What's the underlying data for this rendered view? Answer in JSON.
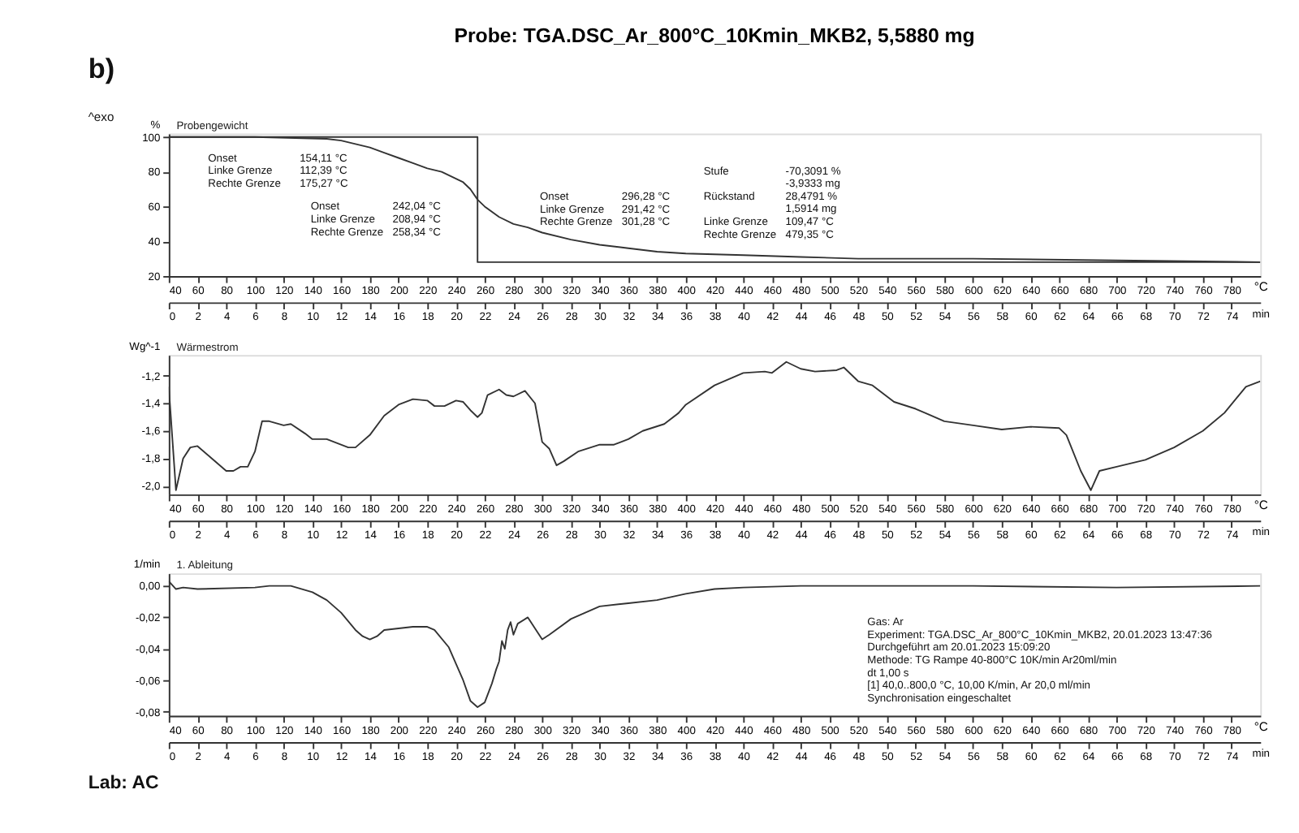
{
  "chart_data": [
    {
      "type": "line",
      "title": "Probe: TGA.DSC_Ar_800°C_10Kmin_MKB2, 5,5880 mg",
      "subtitle": "Probengewicht",
      "ylabel": "%",
      "xlabel": "°C",
      "x2label": "min",
      "x": [
        40,
        100,
        150,
        160,
        170,
        180,
        190,
        200,
        210,
        220,
        230,
        240,
        245,
        250,
        255,
        260,
        270,
        280,
        290,
        300,
        320,
        340,
        360,
        380,
        400,
        440,
        480,
        520,
        600,
        700,
        800
      ],
      "series": [
        {
          "color": "#333333",
          "values": [
            100,
            100,
            99,
            98,
            96,
            94,
            91,
            88,
            85,
            82,
            80,
            76,
            74,
            70,
            64,
            60,
            54,
            50,
            48,
            45,
            41,
            38,
            36,
            34,
            33,
            32,
            31,
            30,
            30,
            29,
            28
          ]
        },
        {
          "color": "#333333",
          "x": [
            40,
            255,
            255,
            800
          ],
          "values": [
            100,
            100,
            28,
            28
          ]
        }
      ],
      "xlim": [
        40,
        800
      ],
      "xticks": [
        40,
        60,
        80,
        100,
        120,
        140,
        160,
        180,
        200,
        220,
        240,
        260,
        280,
        300,
        320,
        340,
        360,
        380,
        400,
        420,
        440,
        460,
        480,
        500,
        520,
        540,
        560,
        580,
        600,
        620,
        640,
        660,
        680,
        700,
        720,
        740,
        760,
        780
      ],
      "x2lim": [
        0,
        76
      ],
      "x2ticks": [
        0,
        2,
        4,
        6,
        8,
        10,
        12,
        14,
        16,
        18,
        20,
        22,
        24,
        26,
        28,
        30,
        32,
        34,
        36,
        38,
        40,
        42,
        44,
        46,
        48,
        50,
        52,
        54,
        56,
        58,
        60,
        62,
        64,
        66,
        68,
        70,
        72,
        74
      ],
      "ylim": [
        20,
        102
      ],
      "yticks": [
        20,
        40,
        60,
        80,
        100
      ],
      "grid": false,
      "annotations": [
        "b)",
        "^exo",
        "Onset\nLinke Grenze\nRechte Grenze",
        "154,11 °C\n112,39 °C\n175,27 °C",
        "Onset\nLinke Grenze\nRechte Grenze",
        "242,04 °C\n208,94 °C\n258,34 °C",
        "Onset\nLinke Grenze\nRechte Grenze",
        "296,28 °C\n291,42 °C\n301,28 °C",
        "Stufe",
        "Rückstand",
        "Linke Grenze\nRechte Grenze",
        "-70,3091 %\n-3,9333 mg\n28,4791 %\n1,5914 mg\n109,47 °C\n479,35 °C"
      ]
    },
    {
      "type": "line",
      "subtitle": "Wärmestrom",
      "ylabel": "Wg^-1",
      "xlabel": "°C",
      "x2label": "min",
      "x": [
        40,
        45,
        50,
        55,
        60,
        70,
        80,
        85,
        90,
        95,
        100,
        105,
        110,
        120,
        125,
        135,
        140,
        150,
        165,
        170,
        180,
        190,
        200,
        210,
        220,
        225,
        232,
        240,
        245,
        250,
        255,
        258,
        262,
        270,
        275,
        280,
        288,
        295,
        300,
        305,
        310,
        315,
        325,
        340,
        350,
        360,
        370,
        385,
        395,
        400,
        420,
        440,
        455,
        460,
        470,
        480,
        490,
        505,
        510,
        520,
        530,
        545,
        560,
        580,
        600,
        620,
        640,
        660,
        665,
        675,
        682,
        688,
        700,
        720,
        740,
        760,
        775,
        790,
        800
      ],
      "series": [
        {
          "color": "#333333",
          "values": [
            -1.28,
            -2.03,
            -1.8,
            -1.72,
            -1.71,
            -1.8,
            -1.89,
            -1.89,
            -1.86,
            -1.86,
            -1.75,
            -1.53,
            -1.53,
            -1.56,
            -1.55,
            -1.62,
            -1.66,
            -1.66,
            -1.72,
            -1.72,
            -1.63,
            -1.49,
            -1.41,
            -1.37,
            -1.38,
            -1.42,
            -1.42,
            -1.38,
            -1.39,
            -1.45,
            -1.5,
            -1.47,
            -1.34,
            -1.3,
            -1.34,
            -1.35,
            -1.31,
            -1.4,
            -1.68,
            -1.73,
            -1.85,
            -1.82,
            -1.75,
            -1.7,
            -1.7,
            -1.66,
            -1.6,
            -1.55,
            -1.47,
            -1.41,
            -1.27,
            -1.18,
            -1.17,
            -1.18,
            -1.1,
            -1.15,
            -1.17,
            -1.16,
            -1.14,
            -1.24,
            -1.27,
            -1.39,
            -1.44,
            -1.53,
            -1.56,
            -1.59,
            -1.57,
            -1.58,
            -1.63,
            -1.89,
            -2.03,
            -1.89,
            -1.86,
            -1.81,
            -1.72,
            -1.6,
            -1.47,
            -1.28,
            -1.24
          ]
        }
      ],
      "xlim": [
        40,
        800
      ],
      "xticks": [
        40,
        60,
        80,
        100,
        120,
        140,
        160,
        180,
        200,
        220,
        240,
        260,
        280,
        300,
        320,
        340,
        360,
        380,
        400,
        420,
        440,
        460,
        480,
        500,
        520,
        540,
        560,
        580,
        600,
        620,
        640,
        660,
        680,
        700,
        720,
        740,
        760,
        780
      ],
      "x2lim": [
        0,
        76
      ],
      "x2ticks": [
        0,
        2,
        4,
        6,
        8,
        10,
        12,
        14,
        16,
        18,
        20,
        22,
        24,
        26,
        28,
        30,
        32,
        34,
        36,
        38,
        40,
        42,
        44,
        46,
        48,
        50,
        52,
        54,
        56,
        58,
        60,
        62,
        64,
        66,
        68,
        70,
        72,
        74
      ],
      "ylim": [
        -2.06,
        -1.05
      ],
      "yticks": [
        {
          "value": -2.0,
          "label": "-2,0"
        },
        {
          "value": -1.8,
          "label": "-1,8"
        },
        {
          "value": -1.6,
          "label": "-1,6"
        },
        {
          "value": -1.4,
          "label": "-1,4"
        },
        {
          "value": -1.2,
          "label": "-1,2"
        }
      ],
      "grid": false
    },
    {
      "type": "line",
      "subtitle": "1. Ableitung",
      "ylabel": "1/min",
      "xlabel": "°C",
      "x2label": "min",
      "x": [
        40,
        45,
        50,
        60,
        100,
        110,
        125,
        140,
        150,
        160,
        170,
        175,
        180,
        185,
        190,
        200,
        210,
        220,
        225,
        235,
        245,
        250,
        255,
        260,
        265,
        268,
        270,
        272,
        274,
        276,
        278,
        280,
        283,
        290,
        295,
        300,
        305,
        320,
        340,
        360,
        380,
        400,
        420,
        440,
        480,
        600,
        700,
        800
      ],
      "series": [
        {
          "color": "#333333",
          "values": [
            0.003,
            -0.002,
            -0.001,
            -0.002,
            -0.001,
            0.0,
            0.0,
            -0.004,
            -0.009,
            -0.017,
            -0.028,
            -0.032,
            -0.034,
            -0.032,
            -0.028,
            -0.027,
            -0.026,
            -0.026,
            -0.028,
            -0.039,
            -0.06,
            -0.073,
            -0.077,
            -0.074,
            -0.062,
            -0.053,
            -0.048,
            -0.035,
            -0.04,
            -0.028,
            -0.023,
            -0.031,
            -0.024,
            -0.02,
            -0.027,
            -0.034,
            -0.031,
            -0.021,
            -0.013,
            -0.011,
            -0.009,
            -0.005,
            -0.002,
            -0.001,
            0.0,
            0.0,
            -0.001,
            0.0
          ]
        }
      ],
      "xlim": [
        40,
        800
      ],
      "xticks": [
        40,
        60,
        80,
        100,
        120,
        140,
        160,
        180,
        200,
        220,
        240,
        260,
        280,
        300,
        320,
        340,
        360,
        380,
        400,
        420,
        440,
        460,
        480,
        500,
        520,
        540,
        560,
        580,
        600,
        620,
        640,
        660,
        680,
        700,
        720,
        740,
        760,
        780
      ],
      "x2lim": [
        0,
        76
      ],
      "x2ticks": [
        0,
        2,
        4,
        6,
        8,
        10,
        12,
        14,
        16,
        18,
        20,
        22,
        24,
        26,
        28,
        30,
        32,
        34,
        36,
        38,
        40,
        42,
        44,
        46,
        48,
        50,
        52,
        54,
        56,
        58,
        60,
        62,
        64,
        66,
        68,
        70,
        72,
        74
      ],
      "ylim": [
        -0.0825,
        0.008
      ],
      "yticks": [
        {
          "value": -0.08,
          "label": "-0,08"
        },
        {
          "value": -0.06,
          "label": "-0,06"
        },
        {
          "value": -0.04,
          "label": "-0,04"
        },
        {
          "value": -0.02,
          "label": "-0,02"
        },
        {
          "value": 0.0,
          "label": "0,00"
        }
      ],
      "grid": false,
      "annotations": [
        "Gas: Ar\nExperiment: TGA.DSC_Ar_800°C_10Kmin_MKB2, 20.01.2023 13:47:36\nDurchgeführt am 20.01.2023 15:09:20\nMethode: TG Rampe 40-800°C 10K/min Ar20ml/min\ndt 1,00 s\n[1] 40,0..800,0 °C, 10,00 K/min, Ar 20,0 ml/min\nSynchronisation eingeschaltet",
        "Lab: AC"
      ]
    }
  ]
}
